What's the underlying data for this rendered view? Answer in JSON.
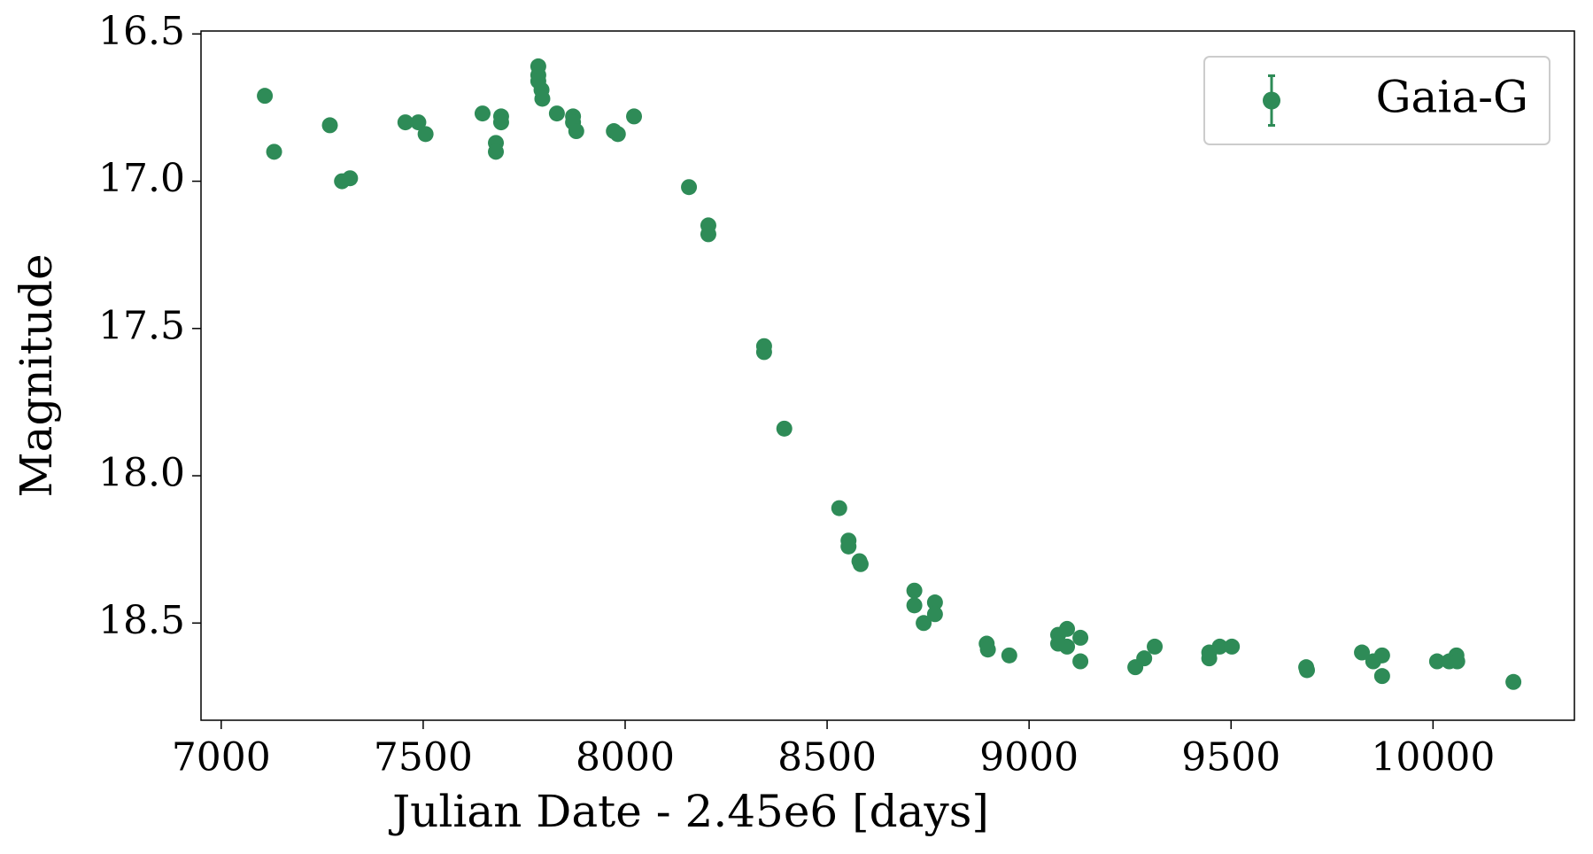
{
  "chart_data": {
    "type": "scatter",
    "xlabel": "Julian Date - 2.45e6 [days]",
    "ylabel": "Magnitude",
    "legend": "upper right",
    "xlim": [
      6950,
      10350
    ],
    "ylim": [
      18.83,
      16.49
    ],
    "xticks": [
      7000,
      7500,
      8000,
      8500,
      9000,
      9500,
      10000
    ],
    "yticks": [
      {
        "value": 16.5,
        "label": "16.5"
      },
      {
        "value": 17,
        "label": "17.0"
      },
      {
        "value": 17.5,
        "label": "17.5"
      },
      {
        "value": 18,
        "label": "18.0"
      },
      {
        "value": 18.5,
        "label": "18.5"
      }
    ],
    "series": [
      {
        "name": "Gaia-G",
        "color": "#2e8b57",
        "x": [
          7108,
          7131,
          7269,
          7299,
          7319,
          7456,
          7488,
          7506,
          7647,
          7680,
          7680,
          7693,
          7693,
          7785,
          7785,
          7785,
          7793,
          7795,
          7831,
          7871,
          7871,
          7879,
          7972,
          7982,
          8022,
          8158,
          8206,
          8206,
          8344,
          8344,
          8394,
          8530,
          8553,
          8553,
          8580,
          8583,
          8716,
          8716,
          8739,
          8767,
          8767,
          8895,
          8898,
          8951,
          9072,
          9072,
          9094,
          9094,
          9127,
          9127,
          9263,
          9285,
          9311,
          9446,
          9446,
          9472,
          9502,
          9686,
          9688,
          9824,
          9852,
          9874,
          9874,
          10010,
          10040,
          10058,
          10060,
          10199
        ],
        "values": [
          16.71,
          16.9,
          16.81,
          17.0,
          16.99,
          16.8,
          16.8,
          16.84,
          16.77,
          16.87,
          16.9,
          16.78,
          16.8,
          16.61,
          16.64,
          16.66,
          16.69,
          16.72,
          16.77,
          16.78,
          16.8,
          16.83,
          16.83,
          16.84,
          16.78,
          17.02,
          17.15,
          17.18,
          17.56,
          17.58,
          17.84,
          18.11,
          18.22,
          18.24,
          18.29,
          18.3,
          18.39,
          18.44,
          18.5,
          18.43,
          18.47,
          18.57,
          18.59,
          18.61,
          18.54,
          18.57,
          18.52,
          18.58,
          18.55,
          18.63,
          18.65,
          18.62,
          18.58,
          18.6,
          18.62,
          18.58,
          18.58,
          18.65,
          18.66,
          18.6,
          18.63,
          18.61,
          18.68,
          18.63,
          18.63,
          18.61,
          18.63,
          18.7
        ]
      }
    ]
  }
}
